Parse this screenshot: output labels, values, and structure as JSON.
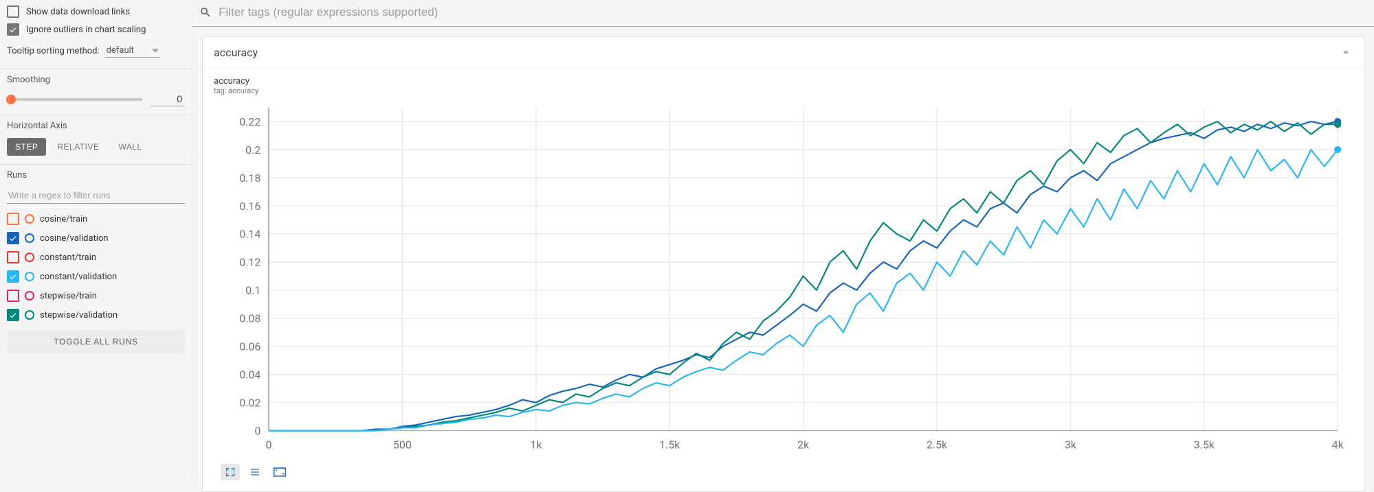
{
  "sidebar": {
    "show_download_links": {
      "label": "Show data download links",
      "checked": false
    },
    "ignore_outliers": {
      "label": "Ignore outliers in chart scaling",
      "checked": true
    },
    "tooltip_sort": {
      "label": "Tooltip sorting method:",
      "value": "default"
    },
    "smoothing": {
      "label": "Smoothing",
      "value": "0",
      "knob_pct": 3,
      "knob_color": "#ff7043"
    },
    "horizontal_axis": {
      "label": "Horizontal Axis",
      "buttons": [
        {
          "label": "STEP",
          "active": true
        },
        {
          "label": "RELATIVE",
          "active": false
        },
        {
          "label": "WALL",
          "active": false
        }
      ]
    },
    "runs": {
      "label": "Runs",
      "filter_placeholder": "Write a regex to filter runs",
      "items": [
        {
          "label": "cosine/train",
          "checked": false,
          "color": "#ff7043"
        },
        {
          "label": "cosine/validation",
          "checked": true,
          "color": "#1565c0"
        },
        {
          "label": "constant/train",
          "checked": false,
          "color": "#e53935"
        },
        {
          "label": "constant/validation",
          "checked": true,
          "color": "#29b6f6"
        },
        {
          "label": "stepwise/train",
          "checked": false,
          "color": "#e91e63"
        },
        {
          "label": "stepwise/validation",
          "checked": true,
          "color": "#00897b"
        }
      ],
      "toggle_all_label": "TOGGLE ALL RUNS"
    }
  },
  "filterbar": {
    "placeholder": "Filter tags (regular expressions supported)"
  },
  "panel": {
    "title": "accuracy",
    "chart": {
      "type": "line",
      "title": "accuracy",
      "tag_line": "tag: accuracy",
      "xlim": [
        0,
        4000
      ],
      "ylim": [
        0,
        0.23
      ],
      "xtick_step": 500,
      "xticks_labels": [
        "0",
        "500",
        "1k",
        "1.5k",
        "2k",
        "2.5k",
        "3k",
        "3.5k",
        "4k"
      ],
      "yticks": [
        0,
        0.02,
        0.04,
        0.06,
        0.08,
        0.1,
        0.12,
        0.14,
        0.16,
        0.18,
        0.2,
        0.22
      ],
      "grid_color": "#e8e8e8",
      "axis_color": "#b0b0b0",
      "background": "#ffffff",
      "tick_fontsize": 11,
      "title_fontsize": 13,
      "line_width": 1.5,
      "end_marker_radius": 3.5,
      "step_interval": 50,
      "series": [
        {
          "name": "cosine/validation",
          "color": "#1565c0",
          "y": [
            0.0,
            0.0,
            0.0,
            0.0,
            0.0,
            0.0,
            0.0,
            0.0,
            0.001,
            0.001,
            0.003,
            0.004,
            0.006,
            0.008,
            0.01,
            0.011,
            0.013,
            0.015,
            0.018,
            0.022,
            0.02,
            0.025,
            0.028,
            0.03,
            0.033,
            0.031,
            0.036,
            0.04,
            0.038,
            0.044,
            0.047,
            0.05,
            0.054,
            0.052,
            0.06,
            0.065,
            0.07,
            0.068,
            0.075,
            0.082,
            0.09,
            0.085,
            0.098,
            0.105,
            0.1,
            0.112,
            0.12,
            0.115,
            0.128,
            0.135,
            0.13,
            0.142,
            0.15,
            0.145,
            0.158,
            0.162,
            0.155,
            0.168,
            0.174,
            0.17,
            0.18,
            0.185,
            0.178,
            0.19,
            0.195,
            0.2,
            0.205,
            0.208,
            0.21,
            0.212,
            0.208,
            0.214,
            0.216,
            0.213,
            0.218,
            0.215,
            0.219,
            0.217,
            0.22,
            0.218,
            0.22
          ]
        },
        {
          "name": "stepwise/validation",
          "color": "#00897b",
          "y": [
            0.0,
            0.0,
            0.0,
            0.0,
            0.0,
            0.0,
            0.0,
            0.0,
            0.0,
            0.001,
            0.002,
            0.003,
            0.004,
            0.006,
            0.007,
            0.009,
            0.011,
            0.013,
            0.016,
            0.014,
            0.018,
            0.022,
            0.02,
            0.026,
            0.024,
            0.03,
            0.034,
            0.032,
            0.038,
            0.042,
            0.04,
            0.048,
            0.055,
            0.05,
            0.062,
            0.07,
            0.065,
            0.078,
            0.085,
            0.095,
            0.11,
            0.1,
            0.12,
            0.128,
            0.115,
            0.135,
            0.148,
            0.14,
            0.135,
            0.15,
            0.142,
            0.158,
            0.165,
            0.155,
            0.17,
            0.162,
            0.178,
            0.185,
            0.175,
            0.192,
            0.2,
            0.19,
            0.205,
            0.198,
            0.21,
            0.215,
            0.205,
            0.212,
            0.218,
            0.21,
            0.216,
            0.22,
            0.212,
            0.218,
            0.214,
            0.22,
            0.213,
            0.219,
            0.211,
            0.218,
            0.218
          ]
        },
        {
          "name": "constant/validation",
          "color": "#29b6f6",
          "y": [
            0.0,
            0.0,
            0.0,
            0.0,
            0.0,
            0.0,
            0.0,
            0.0,
            0.0,
            0.001,
            0.002,
            0.002,
            0.004,
            0.005,
            0.006,
            0.008,
            0.009,
            0.011,
            0.01,
            0.013,
            0.015,
            0.014,
            0.018,
            0.02,
            0.019,
            0.023,
            0.026,
            0.024,
            0.03,
            0.034,
            0.032,
            0.038,
            0.042,
            0.045,
            0.043,
            0.05,
            0.056,
            0.054,
            0.062,
            0.068,
            0.06,
            0.075,
            0.082,
            0.07,
            0.09,
            0.098,
            0.085,
            0.105,
            0.112,
            0.1,
            0.12,
            0.11,
            0.128,
            0.118,
            0.135,
            0.125,
            0.145,
            0.13,
            0.15,
            0.14,
            0.158,
            0.145,
            0.165,
            0.15,
            0.172,
            0.158,
            0.178,
            0.165,
            0.185,
            0.17,
            0.19,
            0.175,
            0.195,
            0.18,
            0.2,
            0.185,
            0.193,
            0.18,
            0.2,
            0.188,
            0.2
          ]
        }
      ]
    }
  }
}
